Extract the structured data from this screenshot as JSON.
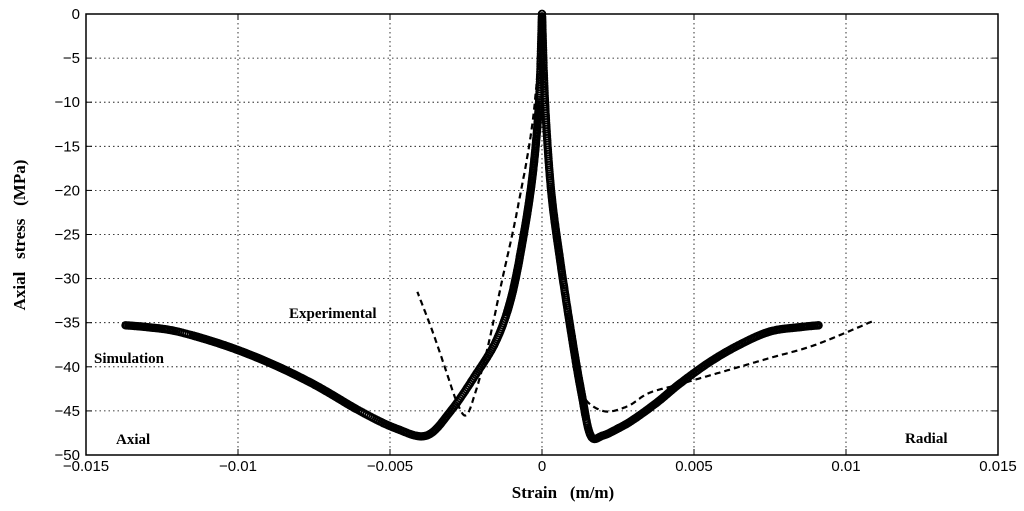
{
  "chart_data": {
    "type": "line",
    "title": "",
    "xlabel": "Strain   (m/m)",
    "ylabel": "Axial   stress   (MPa)",
    "xlim": [
      -0.015,
      0.015
    ],
    "ylim": [
      -50,
      0
    ],
    "grid": true,
    "x_ticks": [
      -0.015,
      -0.01,
      -0.005,
      0,
      0.005,
      0.01,
      0.015
    ],
    "x_tick_labels": [
      "−0.015",
      "−0.01",
      "−0.005",
      "0",
      "0.005",
      "0.01",
      "0.015"
    ],
    "y_ticks": [
      0,
      -5,
      -10,
      -15,
      -20,
      -25,
      -30,
      -35,
      -40,
      -45,
      -50
    ],
    "y_tick_labels": [
      "0",
      "−5",
      "−10",
      "−15",
      "−20",
      "−25",
      "−30",
      "−35",
      "−40",
      "−45",
      "−50"
    ],
    "annotations": {
      "experimental": "Experimental",
      "simulation": "Simulation",
      "axial": "Axial",
      "radial": "Radial"
    },
    "series": [
      {
        "name": "Simulation axial",
        "style": "circles",
        "x": [
          0,
          -0.0001,
          -0.0003,
          -0.0006,
          -0.001,
          -0.0015,
          -0.0022,
          -0.003,
          -0.0038,
          -0.0048,
          -0.006,
          -0.0075,
          -0.009,
          -0.0105,
          -0.012,
          -0.013,
          -0.0137
        ],
        "y": [
          0,
          -10,
          -18,
          -25,
          -32,
          -37,
          -41,
          -45,
          -47.8,
          -47,
          -45,
          -42,
          -39.5,
          -37.5,
          -36,
          -35.5,
          -35.3
        ]
      },
      {
        "name": "Simulation radial",
        "style": "circles",
        "x": [
          0,
          0.0001,
          0.0003,
          0.0006,
          0.001,
          0.0013,
          0.0016,
          0.002,
          0.0025,
          0.003,
          0.0038,
          0.0045,
          0.0055,
          0.0065,
          0.0075,
          0.0085,
          0.0091
        ],
        "y": [
          0,
          -10,
          -20,
          -28,
          -37,
          -43,
          -47.8,
          -47.8,
          -47,
          -46,
          -44,
          -42,
          -39.5,
          -37.5,
          -36,
          -35.5,
          -35.3
        ]
      },
      {
        "name": "Experimental axial",
        "style": "dashed",
        "x": [
          0,
          -0.0003,
          -0.0008,
          -0.0013,
          -0.0018,
          -0.0022,
          -0.0025,
          -0.0028,
          -0.0032,
          -0.0036,
          -0.0041
        ],
        "y": [
          0,
          -12,
          -22,
          -30,
          -38,
          -43,
          -45.5,
          -44,
          -40,
          -36,
          -31.5
        ]
      },
      {
        "name": "Experimental radial",
        "style": "dashed",
        "x": [
          0,
          0.0002,
          0.0004,
          0.0007,
          0.001,
          0.0013,
          0.002,
          0.0028,
          0.0035,
          0.0045,
          0.006,
          0.0075,
          0.009,
          0.0109
        ],
        "y": [
          0,
          -12,
          -22,
          -31,
          -38,
          -43,
          -45,
          -44.5,
          -43,
          -42,
          -40.5,
          -39,
          -37.5,
          -34.8
        ]
      }
    ]
  }
}
